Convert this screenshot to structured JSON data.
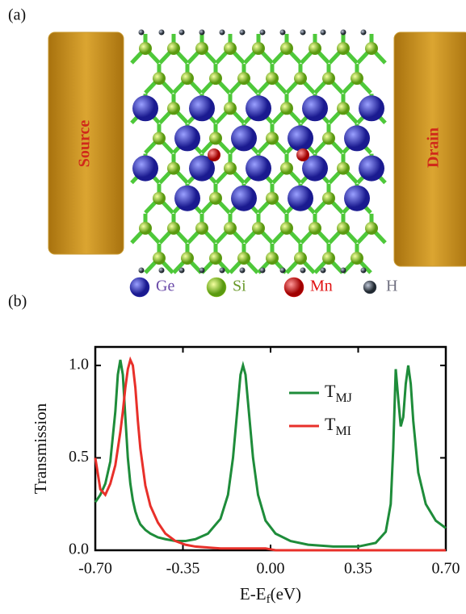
{
  "panel_a": {
    "label": "(a)",
    "source": "Source",
    "drain": "Drain",
    "legend": [
      {
        "name": "Ge",
        "color": "#2a2ab0"
      },
      {
        "name": "Si",
        "color": "#9ad02a"
      },
      {
        "name": "Mn",
        "color": "#e01010"
      },
      {
        "name": "H",
        "color": "#4a5060"
      }
    ]
  },
  "chart_data": {
    "type": "line",
    "label": "(b)",
    "ylabel": "Transmission",
    "xlabel": {
      "text": "E-E",
      "subscript": "f",
      "unit": "(eV)"
    },
    "x": [
      -0.7,
      -0.68,
      -0.66,
      -0.64,
      -0.62,
      -0.61,
      -0.6,
      -0.59,
      -0.58,
      -0.57,
      -0.56,
      -0.55,
      -0.54,
      -0.53,
      -0.52,
      -0.5,
      -0.48,
      -0.45,
      -0.42,
      -0.38,
      -0.34,
      -0.3,
      -0.25,
      -0.2,
      -0.17,
      -0.15,
      -0.13,
      -0.12,
      -0.11,
      -0.1,
      -0.09,
      -0.07,
      -0.05,
      -0.02,
      0.02,
      0.08,
      0.15,
      0.25,
      0.35,
      0.42,
      0.46,
      0.48,
      0.49,
      0.5,
      0.51,
      0.52,
      0.53,
      0.54,
      0.55,
      0.56,
      0.57,
      0.59,
      0.62,
      0.66,
      0.7
    ],
    "series": [
      {
        "name": "T",
        "subscript": "MJ",
        "color": "#1e8c3a",
        "values": [
          0.26,
          0.3,
          0.36,
          0.48,
          0.75,
          0.95,
          1.03,
          0.95,
          0.72,
          0.5,
          0.36,
          0.27,
          0.21,
          0.17,
          0.14,
          0.11,
          0.09,
          0.07,
          0.06,
          0.05,
          0.05,
          0.06,
          0.09,
          0.17,
          0.3,
          0.5,
          0.8,
          0.95,
          1.0,
          0.95,
          0.8,
          0.5,
          0.3,
          0.16,
          0.09,
          0.05,
          0.03,
          0.02,
          0.02,
          0.04,
          0.1,
          0.25,
          0.55,
          0.98,
          0.82,
          0.67,
          0.72,
          0.9,
          1.0,
          0.9,
          0.7,
          0.42,
          0.25,
          0.16,
          0.12
        ]
      },
      {
        "name": "T",
        "subscript": "MI",
        "color": "#e8302a",
        "values": [
          0.5,
          0.33,
          0.3,
          0.36,
          0.46,
          0.55,
          0.64,
          0.75,
          0.88,
          0.98,
          1.03,
          1.0,
          0.88,
          0.7,
          0.55,
          0.35,
          0.24,
          0.15,
          0.09,
          0.05,
          0.03,
          0.02,
          0.015,
          0.01,
          0.01,
          0.01,
          0.01,
          0.01,
          0.01,
          0.01,
          0.01,
          0.01,
          0.01,
          0.01,
          0,
          0,
          0,
          0,
          0,
          0,
          0,
          0,
          0,
          0,
          0,
          0,
          0,
          0,
          0,
          0,
          0,
          0,
          0,
          0,
          0
        ]
      }
    ],
    "xlim": [
      -0.7,
      0.7
    ],
    "xticks": [
      {
        "value": -0.7,
        "label": "-0.70"
      },
      {
        "value": -0.35,
        "label": "-0.35"
      },
      {
        "value": 0,
        "label": "0.00"
      },
      {
        "value": 0.35,
        "label": "0.35"
      },
      {
        "value": 0.7,
        "label": "0.70"
      }
    ],
    "ylim": [
      0,
      1.1
    ],
    "yticks": [
      {
        "value": 0,
        "label": "0.0"
      },
      {
        "value": 0.5,
        "label": "0.5"
      },
      {
        "value": 1,
        "label": "1.0"
      }
    ]
  }
}
